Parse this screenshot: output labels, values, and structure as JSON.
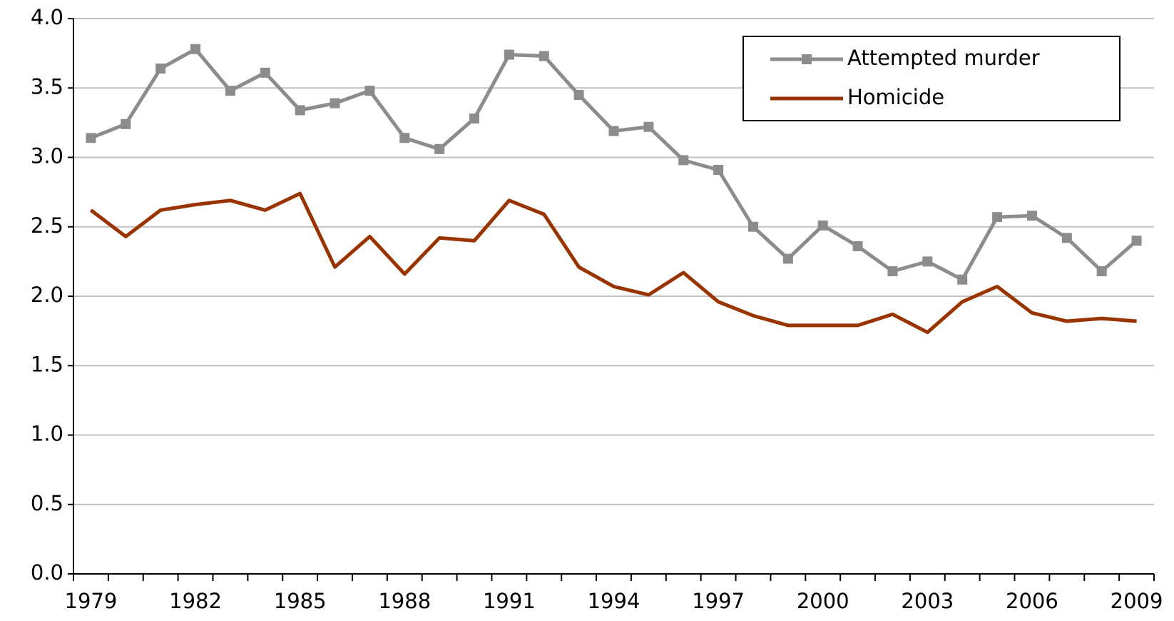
{
  "chart_data": {
    "type": "line",
    "categories": [
      "1979",
      null,
      null,
      "1982",
      null,
      null,
      "1985",
      null,
      null,
      "1988",
      null,
      null,
      "1991",
      null,
      null,
      "1994",
      null,
      null,
      "1997",
      null,
      null,
      "2000",
      null,
      null,
      "2003",
      null,
      null,
      "2006",
      null,
      null,
      "2009"
    ],
    "series": [
      {
        "name": "Attempted murder",
        "color": "#8c8c8c",
        "marker": "square",
        "values": [
          3.14,
          3.24,
          3.64,
          3.78,
          3.48,
          3.61,
          3.34,
          3.39,
          3.48,
          3.14,
          3.06,
          3.28,
          3.74,
          3.73,
          3.45,
          3.19,
          3.22,
          2.98,
          2.91,
          2.5,
          2.27,
          2.51,
          2.36,
          2.18,
          2.25,
          2.12,
          2.57,
          2.58,
          2.42,
          2.18,
          2.4
        ]
      },
      {
        "name": "Homicide",
        "color": "#993300",
        "values": [
          2.62,
          2.43,
          2.62,
          2.66,
          2.69,
          2.62,
          2.74,
          2.21,
          2.43,
          2.16,
          2.42,
          2.4,
          2.69,
          2.59,
          2.21,
          2.07,
          2.01,
          2.17,
          1.96,
          1.86,
          1.79,
          1.79,
          1.79,
          1.87,
          1.74,
          1.96,
          2.07,
          1.88,
          1.82,
          1.84,
          1.82
        ]
      }
    ],
    "ylim": [
      0,
      4
    ],
    "yticks": [
      {
        "value": 0,
        "label": "0.0"
      },
      {
        "value": 0.5,
        "label": "0.5"
      },
      {
        "value": 1,
        "label": "1.0"
      },
      {
        "value": 1.5,
        "label": "1.5"
      },
      {
        "value": 2,
        "label": "2.0"
      },
      {
        "value": 2.5,
        "label": "2.5"
      },
      {
        "value": 3,
        "label": "3.0"
      },
      {
        "value": 3.5,
        "label": "3.5"
      },
      {
        "value": 4,
        "label": "4.0"
      }
    ],
    "grid": true,
    "legend": "top-right"
  }
}
